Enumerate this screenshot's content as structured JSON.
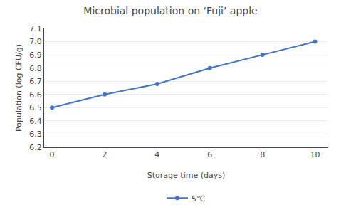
{
  "chart_data": {
    "type": "line",
    "title": "Microbial population on ‘Fuji’ apple",
    "xlabel": "Storage time (days)",
    "ylabel": "Population (log CFU/g)",
    "x": [
      0,
      2,
      4,
      6,
      8,
      10
    ],
    "series": [
      {
        "name": "5℃",
        "color": "#4472C4",
        "marker": "circle",
        "values": [
          6.5,
          6.6,
          6.68,
          6.8,
          6.9,
          7.0
        ]
      }
    ],
    "xlim": [
      -0.3,
      10.5
    ],
    "xticks": [
      0,
      2,
      4,
      6,
      8,
      10
    ],
    "ylim": [
      6.2,
      7.1
    ],
    "yticks": [
      6.2,
      6.3,
      6.4,
      6.5,
      6.6,
      6.7,
      6.8,
      6.9,
      {
        "value": 7.0,
        "label": "7.0"
      },
      7.1
    ],
    "grid": "y",
    "legend": "bottom"
  }
}
